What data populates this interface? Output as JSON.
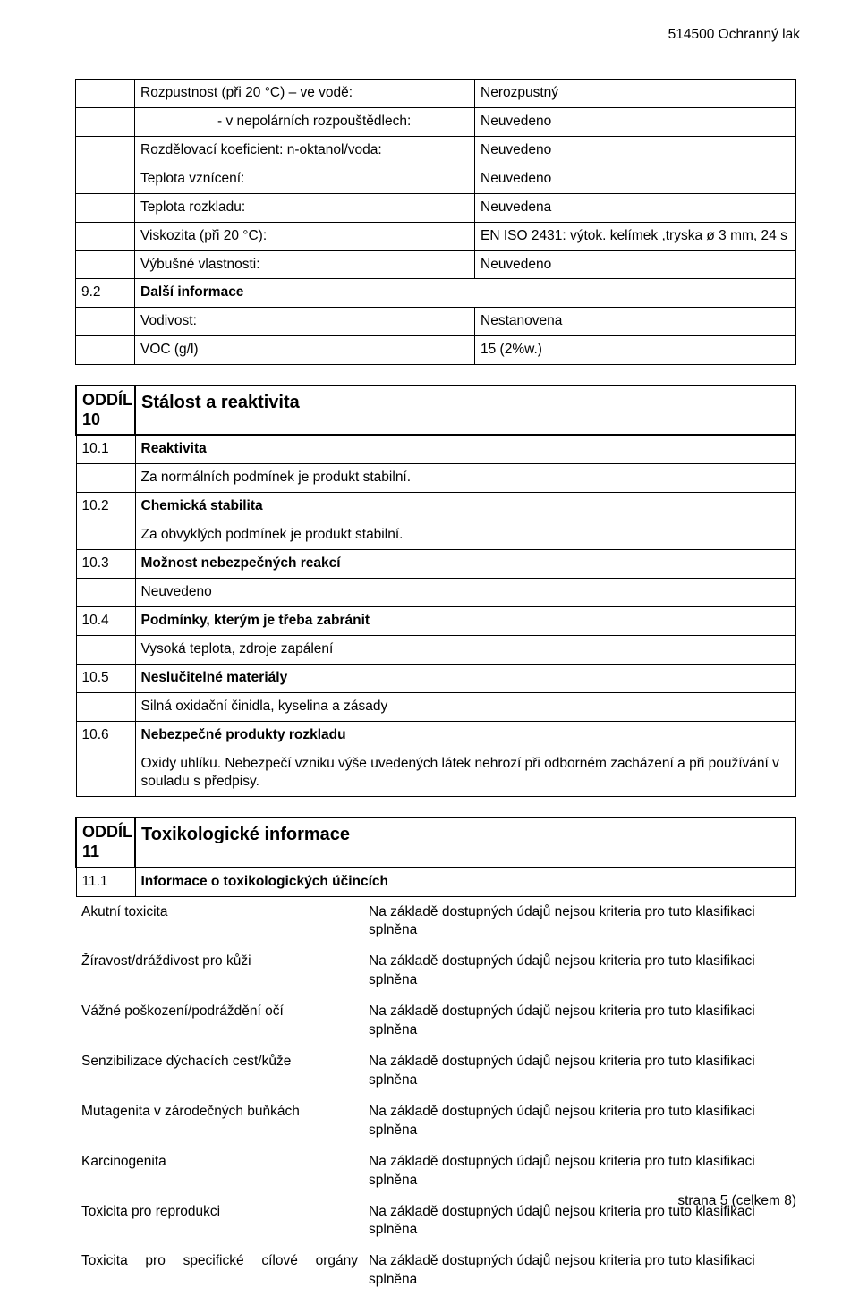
{
  "header": {
    "doc_title": "514500 Ochranný lak"
  },
  "table1": {
    "rows": [
      {
        "num": "",
        "label": "Rozpustnost (při 20 °C) – ve vodě:",
        "value": "Nerozpustný",
        "indent": true
      },
      {
        "num": "",
        "label": "- v nepolárních rozpouštědlech:",
        "value": "Neuvedeno",
        "indent": true,
        "extra_indent": true
      },
      {
        "num": "",
        "label": "Rozdělovací koeficient: n-oktanol/voda:",
        "value": "Neuvedeno",
        "indent": true
      },
      {
        "num": "",
        "label": "Teplota vznícení:",
        "value": "Neuvedeno",
        "indent": true
      },
      {
        "num": "",
        "label": "Teplota rozkladu:",
        "value": "Neuvedena",
        "indent": true
      },
      {
        "num": "",
        "label": "Viskozita (při 20 °C):",
        "value": " EN ISO 2431: výtok. kelímek ,tryska ø 3 mm, 24 s",
        "indent": true
      },
      {
        "num": "",
        "label": "Výbušné vlastnosti:",
        "value": "Neuvedeno",
        "indent": true
      },
      {
        "num": "9.2",
        "label": "Další informace",
        "value": "__NONE__",
        "bold": true
      },
      {
        "num": "",
        "label": "Vodivost:",
        "value": "Nestanovena",
        "indent": true
      },
      {
        "num": "",
        "label": "VOC (g/l)",
        "value": "15 (2%w.)",
        "indent": true
      }
    ]
  },
  "section10": {
    "code": "ODDÍL 10",
    "title": "Stálost a reaktivita",
    "rows": [
      {
        "num": "10.1",
        "label": "Reaktivita",
        "bold": true
      },
      {
        "num": "",
        "label": "Za normálních podmínek je produkt stabilní."
      },
      {
        "num": "10.2",
        "label": "Chemická stabilita",
        "bold": true
      },
      {
        "num": "",
        "label": "Za obvyklých podmínek je produkt stabilní."
      },
      {
        "num": "10.3",
        "label": "Možnost nebezpečných reakcí",
        "bold": true
      },
      {
        "num": "",
        "label": "Neuvedeno"
      },
      {
        "num": "10.4",
        "label": "Podmínky, kterým je třeba zabránit",
        "bold": true
      },
      {
        "num": "",
        "label": "Vysoká teplota, zdroje zapálení"
      },
      {
        "num": "10.5",
        "label": "Neslučitelné materiály",
        "bold": true
      },
      {
        "num": "",
        "label": "Silná oxidační činidla, kyselina a zásady"
      },
      {
        "num": "10.6",
        "label": "Nebezpečné produkty rozkladu",
        "bold": true
      },
      {
        "num": "",
        "label": "Oxidy uhlíku. Nebezpečí vzniku výše uvedených látek nehrozí při odborném zacházení a při používání v souladu s předpisy."
      }
    ]
  },
  "section11": {
    "code": "ODDÍL 11",
    "title": "Toxikologické informace",
    "row_title": {
      "num": "11.1",
      "label": "Informace o toxikologických účincích"
    },
    "items": [
      {
        "name": "Akutní toxicita",
        "value": "Na základě dostupných údajů nejsou kriteria pro tuto klasifikaci splněna"
      },
      {
        "name": "Žíravost/dráždivost pro kůži",
        "value": "Na základě dostupných údajů nejsou kriteria pro tuto klasifikaci splněna"
      },
      {
        "name": "Vážné poškození/podráždění očí",
        "value": "Na základě dostupných údajů nejsou kriteria pro tuto klasifikaci splněna"
      },
      {
        "name": "Senzibilizace dýchacích cest/kůže",
        "value": "Na základě dostupných údajů nejsou kriteria pro tuto klasifikaci splněna"
      },
      {
        "name": "Mutagenita v zárodečných buňkách",
        "value": "Na základě dostupných údajů nejsou kriteria pro tuto klasifikaci splněna"
      },
      {
        "name": "Karcinogenita",
        "value": "Na základě dostupných údajů nejsou kriteria pro tuto klasifikaci splněna"
      },
      {
        "name": "Toxicita pro reprodukci",
        "value": "Na základě dostupných údajů nejsou kriteria pro tuto klasifikaci splněna"
      },
      {
        "name": "Toxicita pro specifické cílové orgány",
        "value": "Na základě dostupných údajů nejsou kriteria pro tuto klasifikaci splněna",
        "justify": true
      }
    ]
  },
  "footer": {
    "text": "strana 5 (celkem 8)"
  }
}
